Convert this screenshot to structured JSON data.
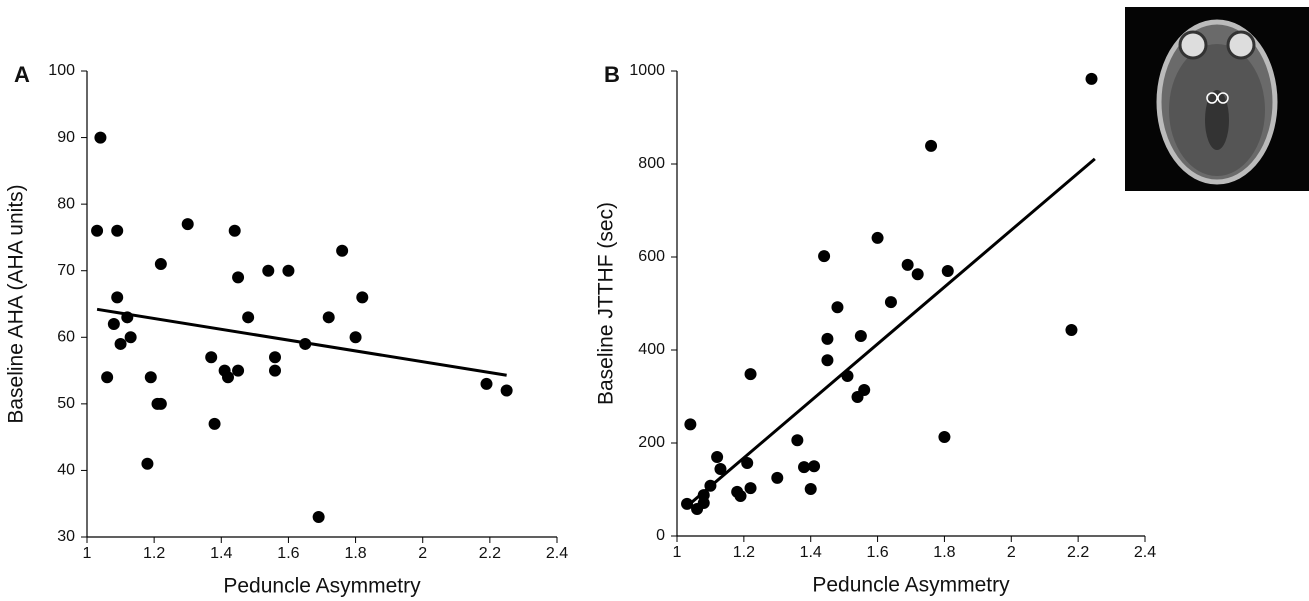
{
  "chart_data": [
    {
      "type": "scatter",
      "panel": "A",
      "x_label": "Peduncle Asymmetry",
      "y_label": "Baseline AHA (AHA units)",
      "xlim": [
        1,
        2.4
      ],
      "xticks": [
        1,
        1.2,
        1.4,
        1.6,
        1.8,
        2,
        2.2,
        2.4
      ],
      "ylim": [
        30,
        100
      ],
      "yticks": [
        30,
        40,
        50,
        60,
        70,
        80,
        90,
        100
      ],
      "series": [
        {
          "type": "scatter",
          "color": "#000000",
          "x": [
            1.03,
            1.04,
            1.06,
            1.08,
            1.09,
            1.09,
            1.1,
            1.12,
            1.13,
            1.18,
            1.19,
            1.21,
            1.22,
            1.22,
            1.3,
            1.37,
            1.38,
            1.41,
            1.42,
            1.44,
            1.45,
            1.45,
            1.48,
            1.54,
            1.56,
            1.56,
            1.6,
            1.65,
            1.69,
            1.72,
            1.76,
            1.8,
            1.82,
            2.19,
            2.25
          ],
          "values": [
            76,
            90,
            54,
            62,
            66,
            76,
            59,
            63,
            60,
            41,
            54,
            50,
            50,
            71,
            77,
            57,
            47,
            55,
            54,
            76,
            69,
            55,
            63,
            70,
            55,
            57,
            70,
            59,
            33,
            63,
            73,
            60,
            66,
            53,
            52
          ]
        },
        {
          "type": "line",
          "color": "#000000",
          "x": [
            1.03,
            2.25
          ],
          "values": [
            64.2,
            54.3
          ]
        }
      ]
    },
    {
      "type": "scatter",
      "panel": "B",
      "x_label": "Peduncle Asymmetry",
      "y_label": "Baseline JTTHF (sec)",
      "xlim": [
        1,
        2.4
      ],
      "xticks": [
        1,
        1.2,
        1.4,
        1.6,
        1.8,
        2,
        2.2,
        2.4
      ],
      "ylim": [
        0,
        1000
      ],
      "yticks": [
        0,
        200,
        400,
        600,
        800,
        1000
      ],
      "series": [
        {
          "type": "scatter",
          "color": "#000000",
          "x": [
            1.03,
            1.04,
            1.06,
            1.08,
            1.08,
            1.1,
            1.12,
            1.13,
            1.18,
            1.19,
            1.21,
            1.22,
            1.22,
            1.3,
            1.36,
            1.38,
            1.4,
            1.41,
            1.44,
            1.45,
            1.45,
            1.48,
            1.51,
            1.54,
            1.55,
            1.56,
            1.6,
            1.64,
            1.69,
            1.72,
            1.76,
            1.8,
            1.81,
            2.18,
            2.24
          ],
          "values": [
            69,
            240,
            58,
            88,
            71,
            108,
            170,
            144,
            95,
            86,
            157,
            348,
            103,
            125,
            206,
            148,
            101,
            150,
            602,
            424,
            378,
            492,
            344,
            299,
            430,
            314,
            641,
            503,
            583,
            563,
            839,
            213,
            570,
            443,
            983
          ]
        },
        {
          "type": "line",
          "color": "#000000",
          "x": [
            1.04,
            2.25
          ],
          "values": [
            70,
            811
          ]
        }
      ]
    }
  ]
}
